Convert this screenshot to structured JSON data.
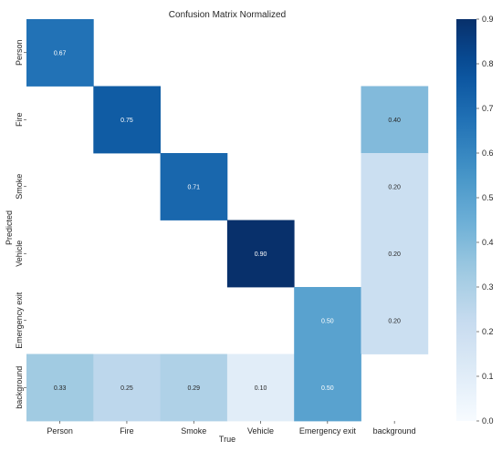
{
  "chart_data": {
    "type": "heatmap",
    "title": "Confusion Matrix Normalized",
    "xlabel": "True",
    "ylabel": "Predicted",
    "x_categories": [
      "Person",
      "Fire",
      "Smoke",
      "Vehicle",
      "Emergency exit",
      "background"
    ],
    "y_categories": [
      "Person",
      "Fire",
      "Smoke",
      "Vehicle",
      "Emergency exit",
      "background"
    ],
    "matrix": [
      [
        0.67,
        null,
        null,
        null,
        null,
        null
      ],
      [
        null,
        0.75,
        null,
        null,
        null,
        0.4
      ],
      [
        null,
        null,
        0.71,
        null,
        null,
        0.2
      ],
      [
        null,
        null,
        null,
        0.9,
        null,
        0.2
      ],
      [
        null,
        null,
        null,
        null,
        0.5,
        0.2
      ],
      [
        0.33,
        0.25,
        0.29,
        0.1,
        0.5,
        null
      ]
    ],
    "value_labels": [
      [
        "0.67",
        "",
        "",
        "",
        "",
        ""
      ],
      [
        "",
        "0.75",
        "",
        "",
        "",
        "0.40"
      ],
      [
        "",
        "",
        "0.71",
        "",
        "",
        "0.20"
      ],
      [
        "",
        "",
        "",
        "0.90",
        "",
        "0.20"
      ],
      [
        "",
        "",
        "",
        "",
        "0.50",
        "0.20"
      ],
      [
        "0.33",
        "0.25",
        "0.29",
        "0.10",
        "0.50",
        ""
      ]
    ],
    "colorbar": {
      "vmin": 0.0,
      "vmax": 0.9,
      "ticks": [
        "0.0",
        "0.1",
        "0.2",
        "0.3",
        "0.4",
        "0.5",
        "0.6",
        "0.7",
        "0.8",
        "0.9"
      ],
      "colormap": "Blues"
    },
    "grid": false
  }
}
